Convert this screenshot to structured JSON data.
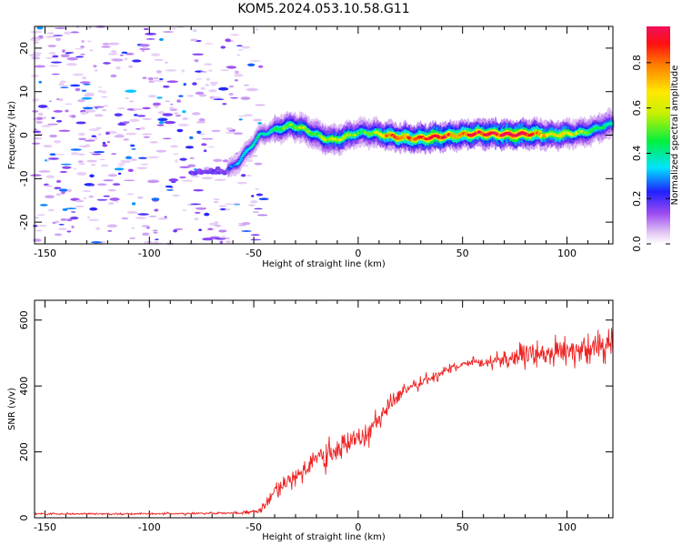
{
  "chart_data": [
    {
      "type": "heatmap",
      "title": "KOM5.2024.053.10.58.G11",
      "xlabel": "Height of straight line (km)",
      "ylabel": "Frequency (Hz)",
      "xlim": [
        -155,
        122
      ],
      "ylim": [
        -25,
        25
      ],
      "xticks": [
        -150,
        -100,
        -50,
        0,
        50,
        100
      ],
      "yticks": [
        -20,
        -10,
        0,
        10,
        20
      ],
      "colorbar": {
        "label": "Normalized spectral amplitude",
        "range": [
          0.0,
          0.96
        ],
        "ticks": [
          0.0,
          0.2,
          0.4,
          0.6,
          0.8
        ]
      },
      "ridge": {
        "x": [
          -62,
          -57,
          -52,
          -47,
          -42,
          -37,
          -32,
          -27,
          -22,
          -17,
          -12,
          -7,
          -2,
          3,
          8,
          13,
          18,
          23,
          28,
          33,
          38,
          43,
          48,
          53,
          58,
          63,
          68,
          73,
          78,
          83,
          88,
          93,
          98,
          103,
          108,
          113,
          118,
          122
        ],
        "y": [
          -8,
          -6,
          -3,
          0,
          0.8,
          1.6,
          2.2,
          1.6,
          0.5,
          -0.6,
          -1.2,
          -0.6,
          0.3,
          0.6,
          0.4,
          0,
          -0.4,
          -0.6,
          -0.8,
          -0.6,
          -0.4,
          -0.2,
          0,
          0.2,
          0.4,
          0.3,
          0.2,
          0.1,
          0.2,
          0.3,
          0.2,
          0,
          0.2,
          0.4,
          0.6,
          1.2,
          2.2,
          2.5
        ],
        "amplitude": [
          0.25,
          0.3,
          0.35,
          0.35,
          0.4,
          0.45,
          0.5,
          0.55,
          0.45,
          0.5,
          0.6,
          0.55,
          0.5,
          0.45,
          0.5,
          0.7,
          0.8,
          0.75,
          0.8,
          0.85,
          0.9,
          0.8,
          0.75,
          0.8,
          0.85,
          0.9,
          0.85,
          0.95,
          0.9,
          0.8,
          0.7,
          0.6,
          0.65,
          0.55,
          0.5,
          0.45,
          0.4,
          0.35
        ]
      }
    },
    {
      "type": "line",
      "title": "",
      "xlabel": "Height of straight line (km)",
      "ylabel": "SNR (v/v)",
      "xlim": [
        -155,
        122
      ],
      "ylim": [
        0,
        660
      ],
      "xticks": [
        -150,
        -100,
        -50,
        0,
        50,
        100
      ],
      "yticks": [
        0,
        200,
        400,
        600
      ],
      "series": [
        {
          "color": "#ee2222",
          "x": [
            -155,
            -100,
            -60,
            -48,
            -44,
            -40,
            -35,
            -30,
            -25,
            -20,
            -15,
            -10,
            -5,
            0,
            5,
            10,
            15,
            20,
            25,
            30,
            35,
            40,
            45,
            50,
            55,
            60,
            65,
            70,
            75,
            80,
            85,
            90,
            95,
            100,
            105,
            110,
            115,
            122
          ],
          "values": [
            12,
            12,
            14,
            18,
            40,
            80,
            110,
            130,
            150,
            175,
            185,
            200,
            230,
            245,
            265,
            300,
            340,
            370,
            400,
            410,
            425,
            440,
            455,
            460,
            470,
            470,
            480,
            480,
            485,
            490,
            495,
            500,
            505,
            505,
            510,
            510,
            515,
            520
          ],
          "noise": [
            4,
            4,
            5,
            8,
            20,
            35,
            45,
            50,
            55,
            55,
            55,
            55,
            55,
            50,
            45,
            40,
            35,
            30,
            25,
            22,
            20,
            20,
            18,
            18,
            20,
            25,
            30,
            35,
            40,
            45,
            48,
            50,
            50,
            52,
            52,
            55,
            55,
            60
          ]
        }
      ]
    }
  ]
}
